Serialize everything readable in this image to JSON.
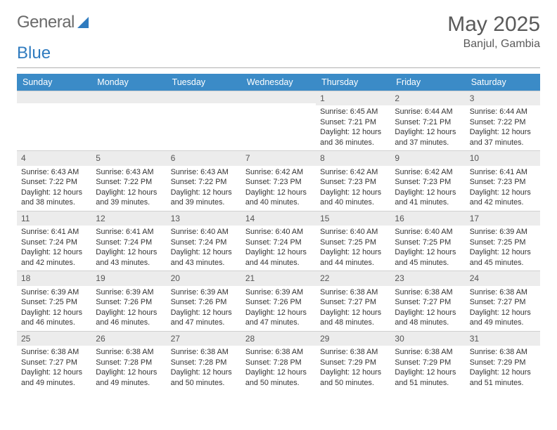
{
  "logo": {
    "part1": "General",
    "part2": "Blue"
  },
  "title": "May 2025",
  "location": "Banjul, Gambia",
  "colors": {
    "header_bg": "#3b8bc7",
    "header_fg": "#ffffff",
    "daynum_bg": "#ececec",
    "logo_gray": "#6a6a6a",
    "logo_blue": "#2f7bbf"
  },
  "daynames": [
    "Sunday",
    "Monday",
    "Tuesday",
    "Wednesday",
    "Thursday",
    "Friday",
    "Saturday"
  ],
  "weeks": [
    [
      {
        "n": "",
        "sr": "",
        "ss": "",
        "dl": ""
      },
      {
        "n": "",
        "sr": "",
        "ss": "",
        "dl": ""
      },
      {
        "n": "",
        "sr": "",
        "ss": "",
        "dl": ""
      },
      {
        "n": "",
        "sr": "",
        "ss": "",
        "dl": ""
      },
      {
        "n": "1",
        "sr": "Sunrise: 6:45 AM",
        "ss": "Sunset: 7:21 PM",
        "dl": "Daylight: 12 hours and 36 minutes."
      },
      {
        "n": "2",
        "sr": "Sunrise: 6:44 AM",
        "ss": "Sunset: 7:21 PM",
        "dl": "Daylight: 12 hours and 37 minutes."
      },
      {
        "n": "3",
        "sr": "Sunrise: 6:44 AM",
        "ss": "Sunset: 7:22 PM",
        "dl": "Daylight: 12 hours and 37 minutes."
      }
    ],
    [
      {
        "n": "4",
        "sr": "Sunrise: 6:43 AM",
        "ss": "Sunset: 7:22 PM",
        "dl": "Daylight: 12 hours and 38 minutes."
      },
      {
        "n": "5",
        "sr": "Sunrise: 6:43 AM",
        "ss": "Sunset: 7:22 PM",
        "dl": "Daylight: 12 hours and 39 minutes."
      },
      {
        "n": "6",
        "sr": "Sunrise: 6:43 AM",
        "ss": "Sunset: 7:22 PM",
        "dl": "Daylight: 12 hours and 39 minutes."
      },
      {
        "n": "7",
        "sr": "Sunrise: 6:42 AM",
        "ss": "Sunset: 7:23 PM",
        "dl": "Daylight: 12 hours and 40 minutes."
      },
      {
        "n": "8",
        "sr": "Sunrise: 6:42 AM",
        "ss": "Sunset: 7:23 PM",
        "dl": "Daylight: 12 hours and 40 minutes."
      },
      {
        "n": "9",
        "sr": "Sunrise: 6:42 AM",
        "ss": "Sunset: 7:23 PM",
        "dl": "Daylight: 12 hours and 41 minutes."
      },
      {
        "n": "10",
        "sr": "Sunrise: 6:41 AM",
        "ss": "Sunset: 7:23 PM",
        "dl": "Daylight: 12 hours and 42 minutes."
      }
    ],
    [
      {
        "n": "11",
        "sr": "Sunrise: 6:41 AM",
        "ss": "Sunset: 7:24 PM",
        "dl": "Daylight: 12 hours and 42 minutes."
      },
      {
        "n": "12",
        "sr": "Sunrise: 6:41 AM",
        "ss": "Sunset: 7:24 PM",
        "dl": "Daylight: 12 hours and 43 minutes."
      },
      {
        "n": "13",
        "sr": "Sunrise: 6:40 AM",
        "ss": "Sunset: 7:24 PM",
        "dl": "Daylight: 12 hours and 43 minutes."
      },
      {
        "n": "14",
        "sr": "Sunrise: 6:40 AM",
        "ss": "Sunset: 7:24 PM",
        "dl": "Daylight: 12 hours and 44 minutes."
      },
      {
        "n": "15",
        "sr": "Sunrise: 6:40 AM",
        "ss": "Sunset: 7:25 PM",
        "dl": "Daylight: 12 hours and 44 minutes."
      },
      {
        "n": "16",
        "sr": "Sunrise: 6:40 AM",
        "ss": "Sunset: 7:25 PM",
        "dl": "Daylight: 12 hours and 45 minutes."
      },
      {
        "n": "17",
        "sr": "Sunrise: 6:39 AM",
        "ss": "Sunset: 7:25 PM",
        "dl": "Daylight: 12 hours and 45 minutes."
      }
    ],
    [
      {
        "n": "18",
        "sr": "Sunrise: 6:39 AM",
        "ss": "Sunset: 7:25 PM",
        "dl": "Daylight: 12 hours and 46 minutes."
      },
      {
        "n": "19",
        "sr": "Sunrise: 6:39 AM",
        "ss": "Sunset: 7:26 PM",
        "dl": "Daylight: 12 hours and 46 minutes."
      },
      {
        "n": "20",
        "sr": "Sunrise: 6:39 AM",
        "ss": "Sunset: 7:26 PM",
        "dl": "Daylight: 12 hours and 47 minutes."
      },
      {
        "n": "21",
        "sr": "Sunrise: 6:39 AM",
        "ss": "Sunset: 7:26 PM",
        "dl": "Daylight: 12 hours and 47 minutes."
      },
      {
        "n": "22",
        "sr": "Sunrise: 6:38 AM",
        "ss": "Sunset: 7:27 PM",
        "dl": "Daylight: 12 hours and 48 minutes."
      },
      {
        "n": "23",
        "sr": "Sunrise: 6:38 AM",
        "ss": "Sunset: 7:27 PM",
        "dl": "Daylight: 12 hours and 48 minutes."
      },
      {
        "n": "24",
        "sr": "Sunrise: 6:38 AM",
        "ss": "Sunset: 7:27 PM",
        "dl": "Daylight: 12 hours and 49 minutes."
      }
    ],
    [
      {
        "n": "25",
        "sr": "Sunrise: 6:38 AM",
        "ss": "Sunset: 7:27 PM",
        "dl": "Daylight: 12 hours and 49 minutes."
      },
      {
        "n": "26",
        "sr": "Sunrise: 6:38 AM",
        "ss": "Sunset: 7:28 PM",
        "dl": "Daylight: 12 hours and 49 minutes."
      },
      {
        "n": "27",
        "sr": "Sunrise: 6:38 AM",
        "ss": "Sunset: 7:28 PM",
        "dl": "Daylight: 12 hours and 50 minutes."
      },
      {
        "n": "28",
        "sr": "Sunrise: 6:38 AM",
        "ss": "Sunset: 7:28 PM",
        "dl": "Daylight: 12 hours and 50 minutes."
      },
      {
        "n": "29",
        "sr": "Sunrise: 6:38 AM",
        "ss": "Sunset: 7:29 PM",
        "dl": "Daylight: 12 hours and 50 minutes."
      },
      {
        "n": "30",
        "sr": "Sunrise: 6:38 AM",
        "ss": "Sunset: 7:29 PM",
        "dl": "Daylight: 12 hours and 51 minutes."
      },
      {
        "n": "31",
        "sr": "Sunrise: 6:38 AM",
        "ss": "Sunset: 7:29 PM",
        "dl": "Daylight: 12 hours and 51 minutes."
      }
    ]
  ]
}
